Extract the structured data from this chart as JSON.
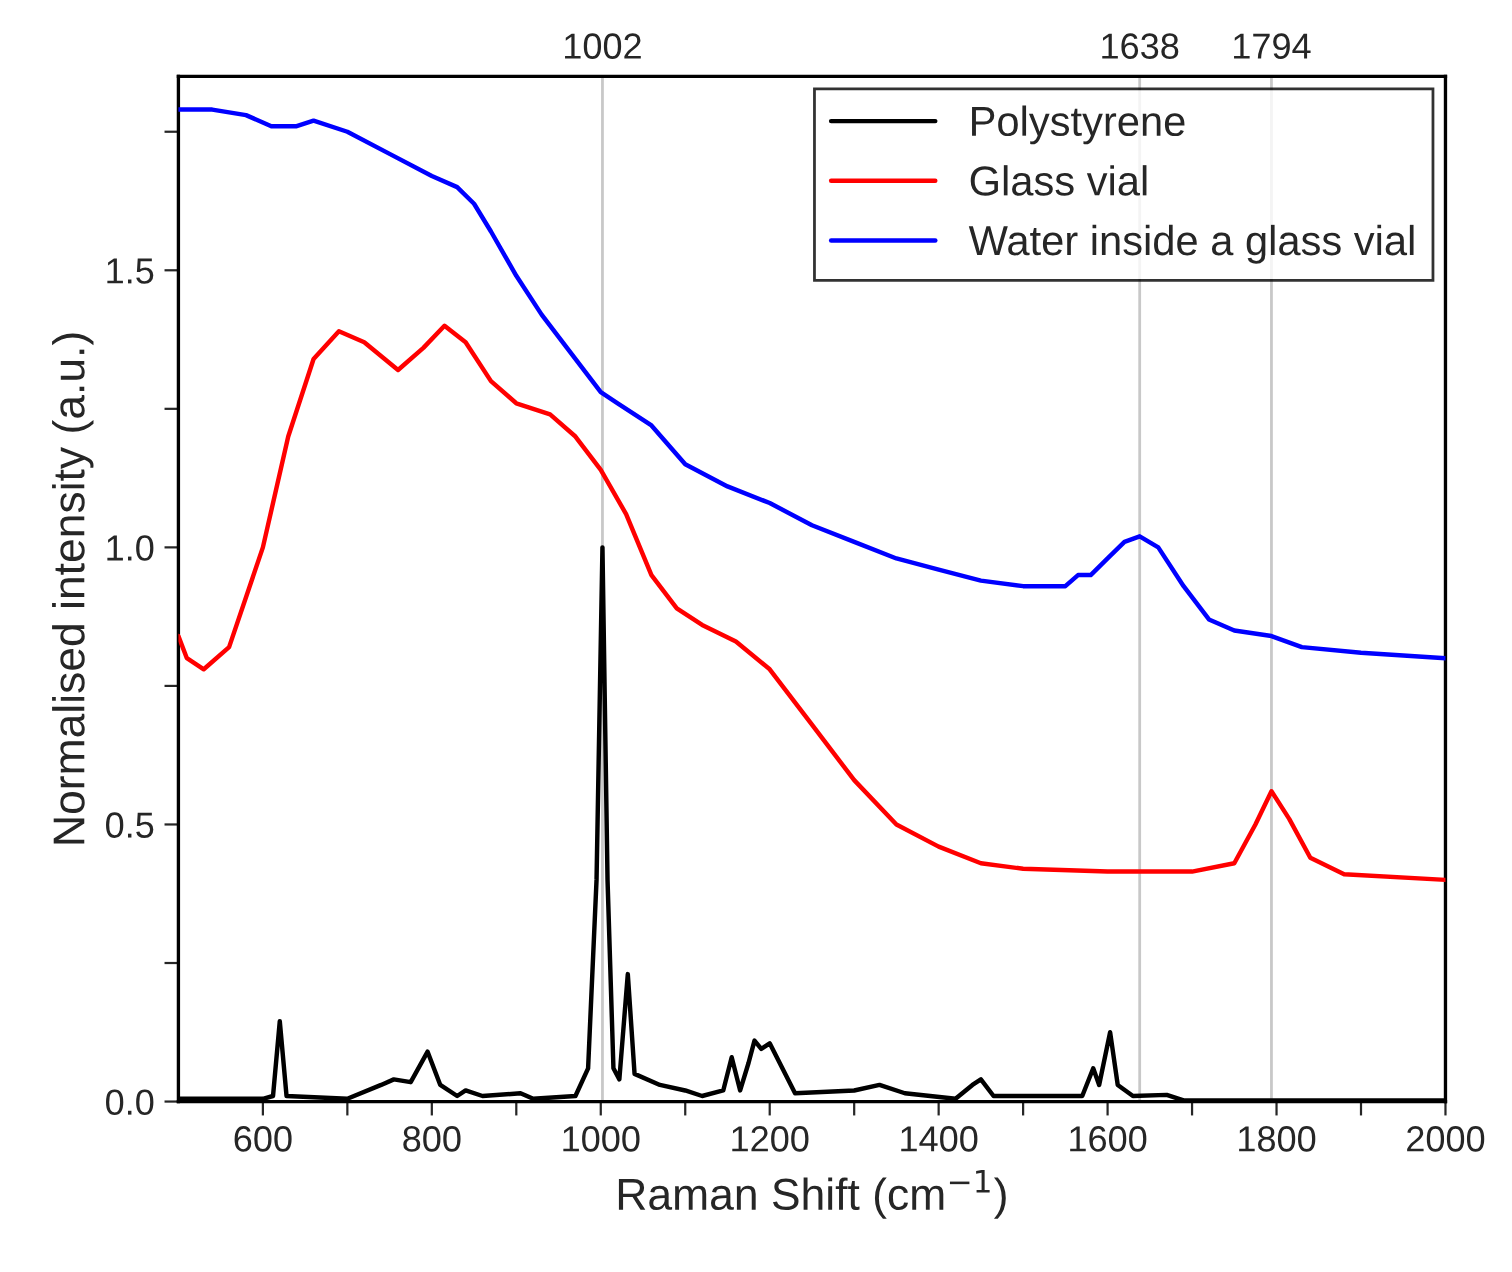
{
  "chart_data": {
    "type": "line",
    "xlabel": "Raman Shift (cm$^{−1}$)",
    "ylabel": "Normalised intensity (a.u.)",
    "xlim": [
      500,
      2000
    ],
    "ylim": [
      0,
      1.85
    ],
    "xticks": [
      600,
      {
        "value": 700,
        "label": null
      },
      800,
      {
        "value": 900,
        "label": null
      },
      1000,
      {
        "value": 1100,
        "label": null
      },
      1200,
      {
        "value": 1300,
        "label": null
      },
      1400,
      {
        "value": 1500,
        "label": null
      },
      1600,
      {
        "value": 1700,
        "label": null
      },
      1800,
      {
        "value": 1900,
        "label": null
      },
      2000
    ],
    "yticks": [
      {
        "value": 0,
        "label": "0.0"
      },
      {
        "value": 0.25,
        "label": null
      },
      0.5,
      {
        "value": 0.75,
        "label": null
      },
      {
        "value": 1,
        "label": "1.0"
      },
      {
        "value": 1.25,
        "label": null
      },
      1.5,
      {
        "value": 1.75,
        "label": null
      }
    ],
    "grid": false,
    "legend": "top right",
    "line_style": "solid",
    "marker": "none",
    "ref_lines": [
      {
        "axis": "x",
        "value": 1002,
        "label": "1002",
        "color": "#c8c8c8"
      },
      {
        "axis": "x",
        "value": 1638,
        "label": "1638",
        "color": "#c8c8c8"
      },
      {
        "axis": "x",
        "value": 1794,
        "label": "1794",
        "color": "#c8c8c8"
      }
    ],
    "series": [
      {
        "name": "Polystyrene",
        "color": "#000000",
        "x": [
          500,
          600,
          612,
          620,
          628,
          700,
          740,
          755,
          775,
          795,
          810,
          830,
          840,
          860,
          905,
          920,
          970,
          985,
          995,
          1002,
          1008,
          1015,
          1022,
          1032,
          1040,
          1070,
          1100,
          1120,
          1145,
          1155,
          1165,
          1175,
          1182,
          1190,
          1200,
          1215,
          1230,
          1300,
          1330,
          1360,
          1420,
          1440,
          1450,
          1465,
          1570,
          1583,
          1590,
          1603,
          1612,
          1630,
          1670,
          1690,
          2000
        ],
        "values": [
          0.005,
          0.005,
          0.01,
          0.145,
          0.01,
          0.005,
          0.03,
          0.04,
          0.035,
          0.09,
          0.03,
          0.01,
          0.02,
          0.01,
          0.015,
          0.005,
          0.01,
          0.06,
          0.4,
          1.0,
          0.4,
          0.06,
          0.04,
          0.23,
          0.05,
          0.03,
          0.02,
          0.01,
          0.02,
          0.08,
          0.02,
          0.07,
          0.11,
          0.095,
          0.105,
          0.06,
          0.015,
          0.02,
          0.03,
          0.015,
          0.005,
          0.03,
          0.04,
          0.01,
          0.01,
          0.06,
          0.03,
          0.125,
          0.03,
          0.01,
          0.012,
          0.002,
          0.002
        ]
      },
      {
        "name": "Glass vial",
        "color": "#ff0000",
        "x": [
          500,
          510,
          530,
          560,
          600,
          630,
          660,
          690,
          720,
          760,
          790,
          815,
          840,
          870,
          900,
          940,
          970,
          1000,
          1030,
          1060,
          1090,
          1120,
          1160,
          1200,
          1250,
          1300,
          1350,
          1400,
          1450,
          1500,
          1600,
          1700,
          1750,
          1775,
          1794,
          1815,
          1840,
          1880,
          2000
        ],
        "values": [
          0.84,
          0.8,
          0.78,
          0.82,
          1.0,
          1.2,
          1.34,
          1.39,
          1.37,
          1.32,
          1.36,
          1.4,
          1.37,
          1.3,
          1.26,
          1.24,
          1.2,
          1.14,
          1.06,
          0.95,
          0.89,
          0.86,
          0.83,
          0.78,
          0.68,
          0.58,
          0.5,
          0.46,
          0.43,
          0.42,
          0.415,
          0.415,
          0.43,
          0.5,
          0.56,
          0.51,
          0.44,
          0.41,
          0.4
        ]
      },
      {
        "name": "Water inside a glass vial",
        "color": "#0000ff",
        "x": [
          500,
          540,
          580,
          610,
          640,
          660,
          700,
          750,
          800,
          830,
          850,
          870,
          900,
          930,
          960,
          1000,
          1020,
          1060,
          1100,
          1150,
          1200,
          1250,
          1300,
          1350,
          1400,
          1450,
          1500,
          1550,
          1565,
          1580,
          1600,
          1620,
          1638,
          1660,
          1690,
          1720,
          1750,
          1794,
          1830,
          1900,
          2000
        ],
        "values": [
          1.79,
          1.79,
          1.78,
          1.76,
          1.76,
          1.77,
          1.75,
          1.71,
          1.67,
          1.65,
          1.62,
          1.57,
          1.49,
          1.42,
          1.36,
          1.28,
          1.26,
          1.22,
          1.15,
          1.11,
          1.08,
          1.04,
          1.01,
          0.98,
          0.96,
          0.94,
          0.93,
          0.93,
          0.95,
          0.95,
          0.98,
          1.01,
          1.02,
          1.0,
          0.93,
          0.87,
          0.85,
          0.84,
          0.82,
          0.81,
          0.8
        ]
      }
    ]
  }
}
